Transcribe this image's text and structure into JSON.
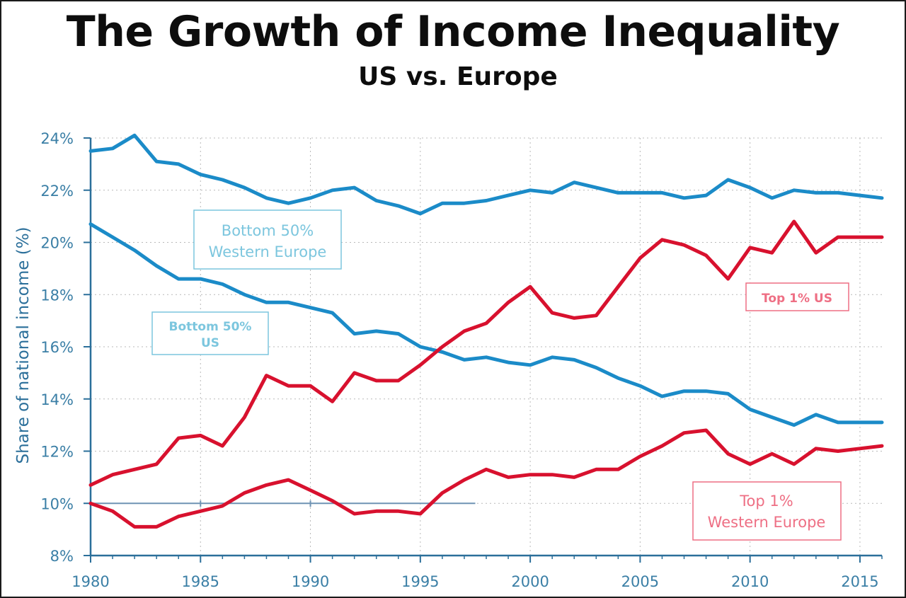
{
  "title": "The Growth of Income Inequality",
  "subtitle": "US vs. Europe",
  "chart_data": {
    "type": "line",
    "title": "The Growth of Income Inequality",
    "subtitle": "US vs. Europe",
    "xlabel": "",
    "ylabel": "Share of national income (%)",
    "xlim": [
      1980,
      2016
    ],
    "ylim": [
      8,
      24
    ],
    "x_ticks": [
      1980,
      1985,
      1990,
      1995,
      2000,
      2005,
      2010,
      2015
    ],
    "y_ticks": [
      8,
      10,
      12,
      14,
      16,
      18,
      20,
      22,
      24
    ],
    "y_tick_labels": [
      "8%",
      "10%",
      "12%",
      "14%",
      "16%",
      "18%",
      "20%",
      "22%",
      "24%"
    ],
    "grid": "dotted",
    "x": [
      1980,
      1981,
      1982,
      1983,
      1984,
      1985,
      1986,
      1987,
      1988,
      1989,
      1990,
      1991,
      1992,
      1993,
      1994,
      1995,
      1996,
      1997,
      1998,
      1999,
      2000,
      2001,
      2002,
      2003,
      2004,
      2005,
      2006,
      2007,
      2008,
      2009,
      2010,
      2011,
      2012,
      2013,
      2014,
      2015,
      2016
    ],
    "series": [
      {
        "name": "Bottom 50% Western Europe",
        "color": "#1b8bc8",
        "values": [
          23.5,
          23.6,
          24.1,
          23.1,
          23.0,
          22.6,
          22.4,
          22.1,
          21.7,
          21.5,
          21.7,
          22.0,
          22.1,
          21.6,
          21.4,
          21.1,
          21.5,
          21.5,
          21.6,
          21.8,
          22.0,
          21.9,
          22.3,
          22.1,
          21.9,
          21.9,
          21.9,
          21.7,
          21.8,
          22.4,
          22.1,
          21.7,
          22.0,
          21.9,
          21.9,
          21.8,
          21.7
        ]
      },
      {
        "name": "Bottom 50% US",
        "color": "#1b8bc8",
        "values": [
          20.7,
          20.2,
          19.7,
          19.1,
          18.6,
          18.6,
          18.4,
          18.0,
          17.7,
          17.7,
          17.5,
          17.3,
          16.5,
          16.6,
          16.5,
          16.0,
          15.8,
          15.5,
          15.6,
          15.4,
          15.3,
          15.6,
          15.5,
          15.2,
          14.8,
          14.5,
          14.1,
          14.3,
          14.3,
          14.2,
          13.6,
          13.3,
          13.0,
          13.4,
          13.1,
          13.1,
          13.1
        ]
      },
      {
        "name": "Top 1% US",
        "color": "#d8112e",
        "values": [
          10.7,
          11.1,
          11.3,
          11.5,
          12.5,
          12.6,
          12.2,
          13.3,
          14.9,
          14.5,
          14.5,
          13.9,
          15.0,
          14.7,
          14.7,
          15.3,
          16.0,
          16.6,
          16.9,
          17.7,
          18.3,
          17.3,
          17.1,
          17.2,
          18.3,
          19.4,
          20.1,
          19.9,
          19.5,
          18.6,
          19.8,
          19.6,
          20.8,
          19.6,
          20.2,
          20.2,
          20.2
        ]
      },
      {
        "name": "Top 1% Western Europe",
        "color": "#d8112e",
        "values": [
          10.0,
          9.7,
          9.1,
          9.1,
          9.5,
          9.7,
          9.9,
          10.4,
          10.7,
          10.9,
          10.5,
          10.1,
          9.6,
          9.7,
          9.7,
          9.6,
          10.4,
          10.9,
          11.3,
          11.0,
          11.1,
          11.1,
          11.0,
          11.3,
          11.3,
          11.8,
          12.2,
          12.7,
          12.8,
          11.9,
          11.5,
          11.9,
          11.5,
          12.1,
          12.0,
          12.1,
          12.2
        ]
      }
    ],
    "annotations": {
      "bottom50_europe": [
        "Bottom 50%",
        "Western Europe"
      ],
      "bottom50_us": [
        "Bottom 50%",
        "US"
      ],
      "top1_us": [
        "Top 1% US"
      ],
      "top1_europe": [
        "Top 1%",
        "Western Europe"
      ]
    },
    "colors": {
      "blue": "#1b8bc8",
      "red": "#d8112e",
      "axis": "#2b6f9a",
      "label_blue": "#7cc6de",
      "label_red": "#ee6f84"
    }
  }
}
